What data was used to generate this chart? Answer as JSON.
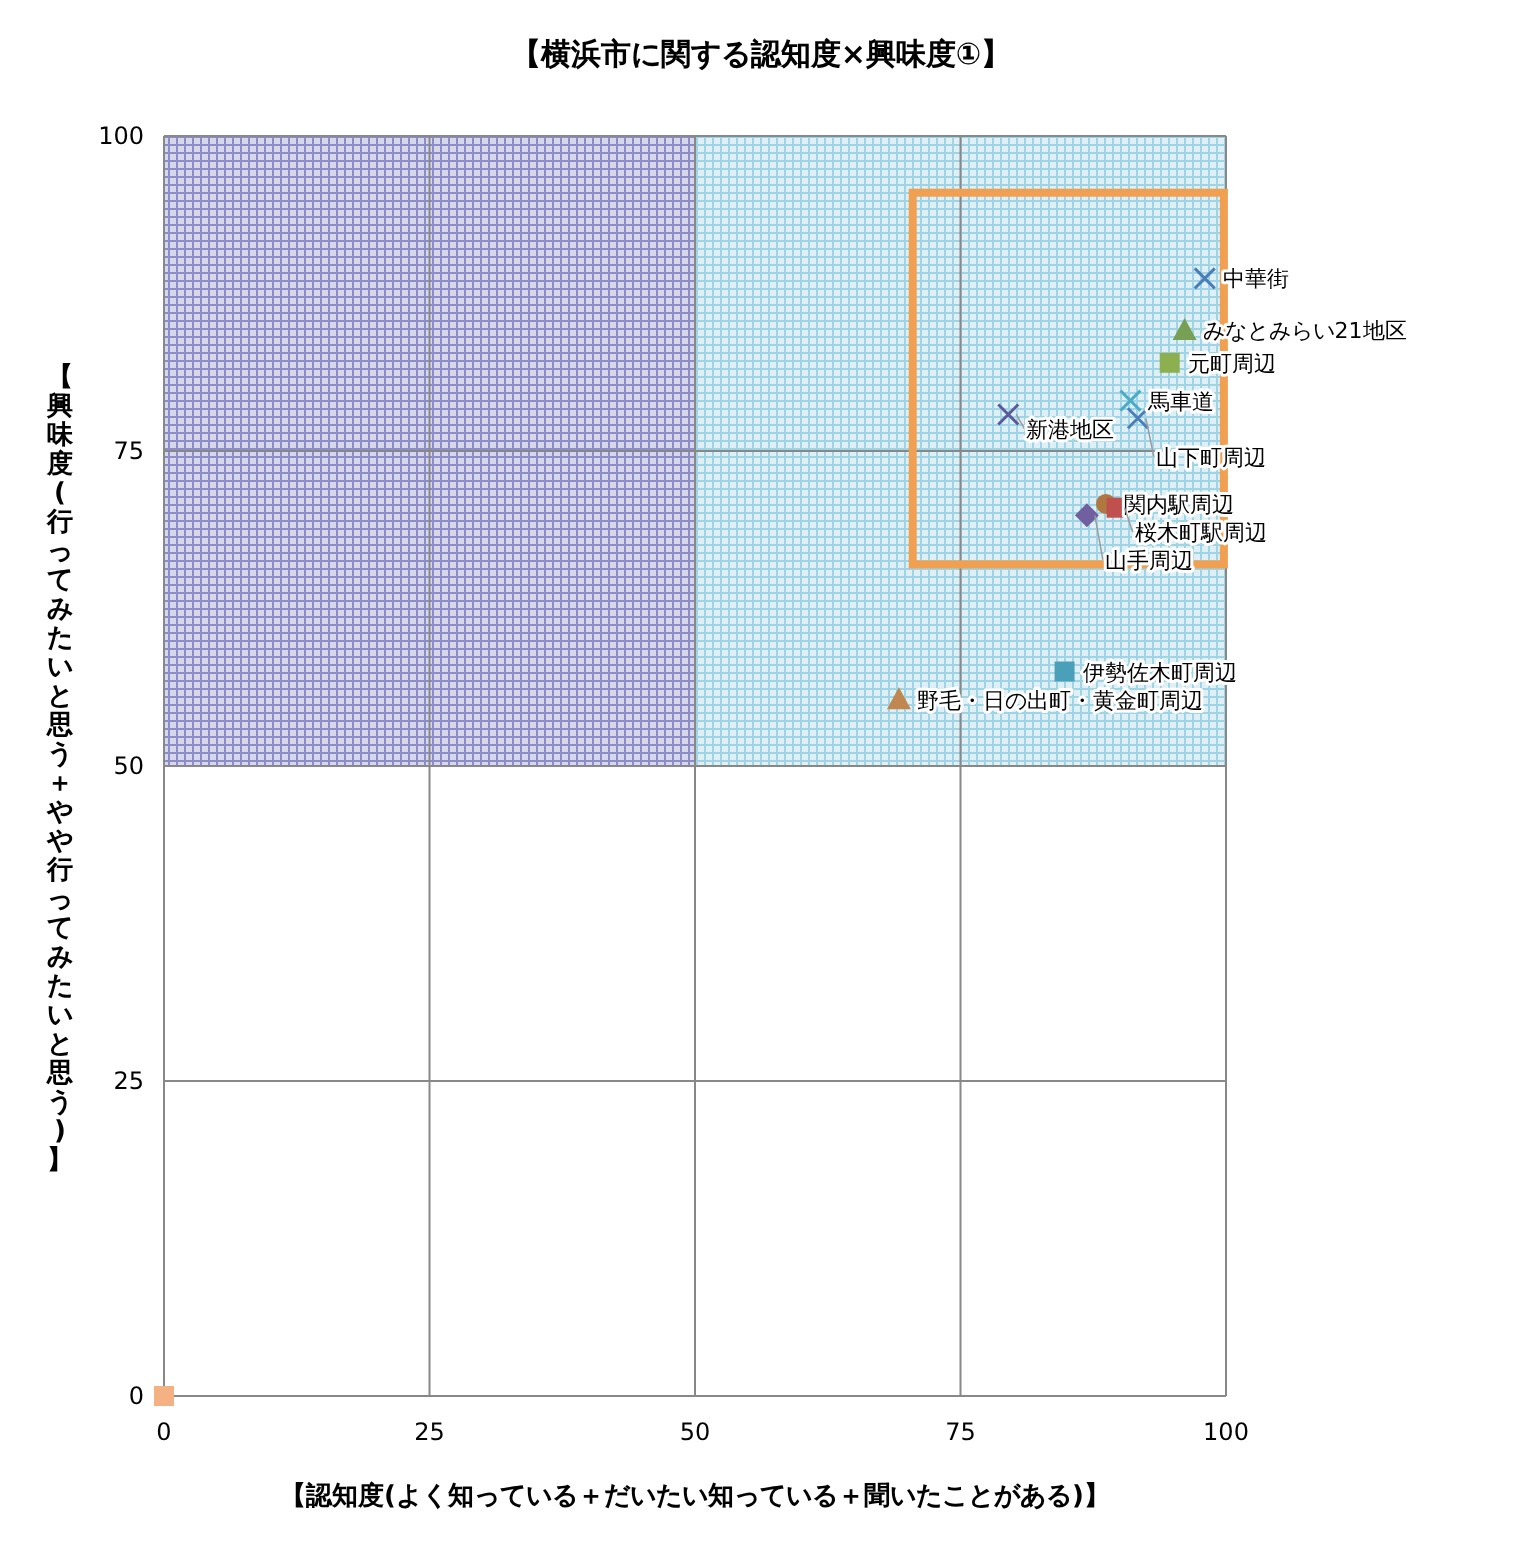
{
  "chart_data": {
    "type": "scatter",
    "title": "【横浜市に関する認知度×興味度①】",
    "xlabel": "【認知度(よく知っている＋だいたい知っている＋聞いたことがある)】",
    "ylabel": "【興味度(行ってみたいと思う＋やや行ってみたいと思う)】",
    "xlim": [
      0,
      100
    ],
    "ylim": [
      0,
      100
    ],
    "xticks": [
      0,
      25,
      50,
      75,
      100
    ],
    "yticks": [
      0,
      25,
      50,
      75,
      100
    ],
    "grid": true,
    "bands": [
      {
        "axis": "x",
        "from": 0,
        "to": 50,
        "color": "#8c8cc8"
      },
      {
        "axis": "x",
        "from": 50,
        "to": 100,
        "color": "#9fd4e4"
      }
    ],
    "series": [
      {
        "name": "中華街",
        "color": "#4a7ebb",
        "marker": "cross",
        "x": [
          98.0
        ],
        "values": [
          88.7
        ]
      },
      {
        "name": "みなとみらい21地区",
        "color": "#77a055",
        "marker": "triangle",
        "x": [
          96.1
        ],
        "values": [
          84.6
        ]
      },
      {
        "name": "元町周辺",
        "color": "#8cb050",
        "marker": "square",
        "x": [
          94.7
        ],
        "values": [
          82.0
        ]
      },
      {
        "name": "馬車道",
        "color": "#4bacc6",
        "marker": "cross",
        "x": [
          91.0
        ],
        "values": [
          79.0
        ]
      },
      {
        "name": "山下町周辺",
        "color": "#4a7ebb",
        "marker": "cross",
        "x": [
          91.7
        ],
        "values": [
          77.6
        ]
      },
      {
        "name": "新港地区",
        "color": "#5a5a9a",
        "marker": "cross",
        "x": [
          79.5
        ],
        "values": [
          77.9
        ]
      },
      {
        "name": "関内駅周辺",
        "color": "#b07840",
        "marker": "circle",
        "x": [
          88.7
        ],
        "values": [
          70.8
        ]
      },
      {
        "name": "桜木町駅周辺",
        "color": "#c0504d",
        "marker": "square",
        "x": [
          89.7
        ],
        "values": [
          70.5
        ]
      },
      {
        "name": "山手周辺",
        "color": "#7060a0",
        "marker": "diamond",
        "x": [
          86.9
        ],
        "values": [
          69.9
        ]
      },
      {
        "name": "伊勢佐木町周辺",
        "color": "#4aa0b8",
        "marker": "square",
        "x": [
          84.8
        ],
        "values": [
          57.5
        ]
      },
      {
        "name": "野毛・日の出町・黄金町周辺",
        "color": "#c08850",
        "marker": "triangle",
        "x": [
          69.2
        ],
        "values": [
          55.3
        ]
      },
      {
        "color": "#f4b183",
        "marker": "square",
        "x": [
          0
        ],
        "values": [
          0
        ]
      }
    ]
  }
}
